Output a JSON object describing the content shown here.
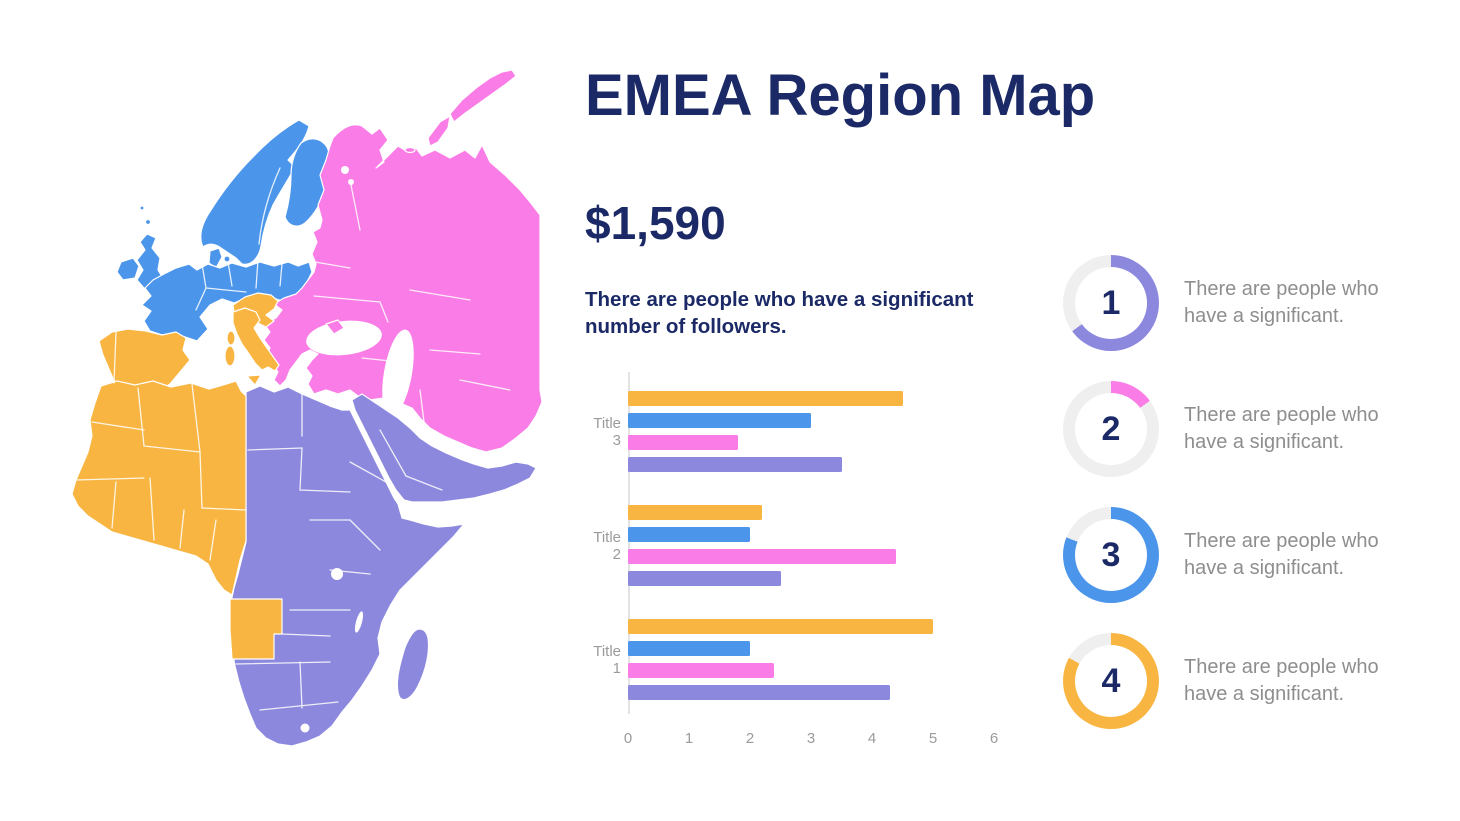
{
  "slide": {
    "title": "EMEA Region Map",
    "amount": "$1,590",
    "description_lines": [
      "There are people who have a significant",
      "number of followers."
    ]
  },
  "colors": {
    "navy": "#1B2A66",
    "graytext": "#8E8E8E",
    "ticklabel": "#9B9B9B",
    "track": "#EFEFEF",
    "axis": "#E3E3E3",
    "blue": "#4B95EB",
    "pink": "#FA7CE6",
    "orange": "#F8B541",
    "purple": "#8C88DD"
  },
  "map": {
    "regions": [
      {
        "id": "europe",
        "color_key": "blue"
      },
      {
        "id": "eastern-europe-russia-middle-east",
        "color_key": "pink"
      },
      {
        "id": "southern-europe-north-west-africa",
        "color_key": "orange"
      },
      {
        "id": "sub-saharan-africa-arabian-peninsula",
        "color_key": "purple"
      }
    ]
  },
  "chart_data": {
    "type": "bar",
    "orientation": "horizontal",
    "title": "",
    "xlabel": "",
    "ylabel": "",
    "categories": [
      "Title 3",
      "Title 2",
      "Title 1"
    ],
    "series": [
      {
        "name": "orange",
        "color_key": "orange",
        "values": [
          4.5,
          2.2,
          5.0
        ]
      },
      {
        "name": "blue",
        "color_key": "blue",
        "values": [
          3.0,
          2.0,
          2.0
        ]
      },
      {
        "name": "pink",
        "color_key": "pink",
        "values": [
          1.8,
          4.4,
          2.4
        ]
      },
      {
        "name": "purple",
        "color_key": "purple",
        "values": [
          3.5,
          2.5,
          4.3
        ]
      }
    ],
    "xlim": [
      0,
      6
    ],
    "xticks": [
      0,
      1,
      2,
      3,
      4,
      5,
      6
    ],
    "grid": false,
    "legend": false
  },
  "stats": {
    "items": [
      {
        "number": "1",
        "percent": 65,
        "color_key": "purple",
        "text_lines": [
          "There are people who",
          "have a significant."
        ]
      },
      {
        "number": "2",
        "percent": 15,
        "color_key": "pink",
        "text_lines": [
          "There are people who",
          "have a significant."
        ]
      },
      {
        "number": "3",
        "percent": 81,
        "color_key": "blue",
        "text_lines": [
          "There are people who",
          "have a significant."
        ]
      },
      {
        "number": "4",
        "percent": 83,
        "color_key": "orange",
        "text_lines": [
          "There are people who",
          "have a significant."
        ]
      }
    ]
  }
}
